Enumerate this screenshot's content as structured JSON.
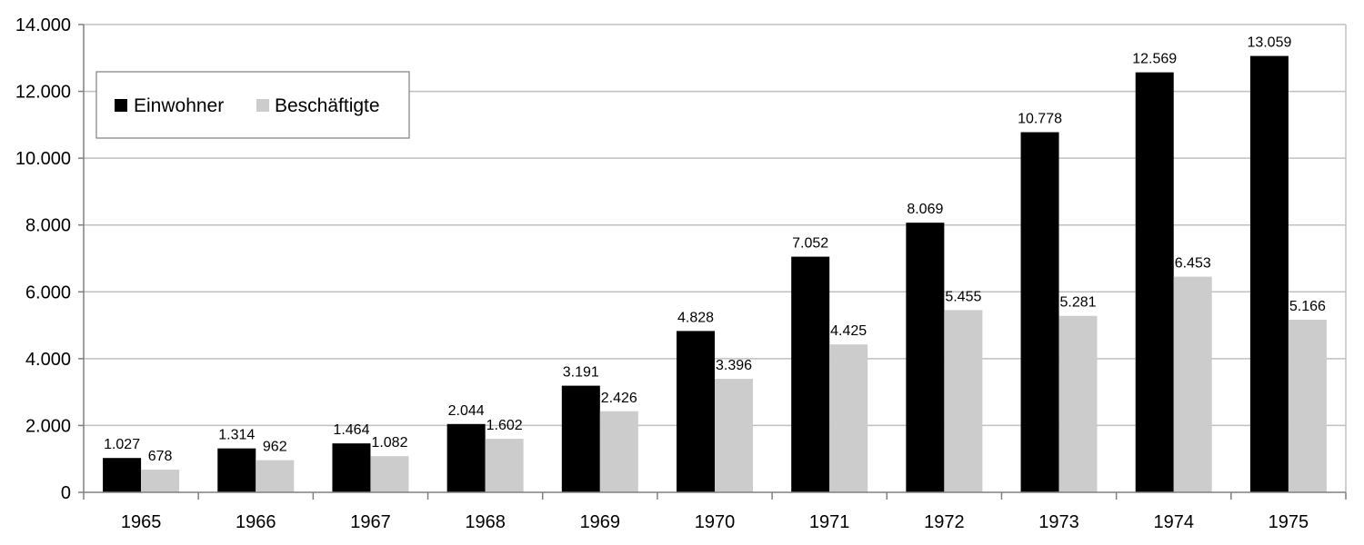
{
  "chart_data": {
    "type": "bar",
    "categories": [
      "1965",
      "1966",
      "1967",
      "1968",
      "1969",
      "1970",
      "1971",
      "1972",
      "1973",
      "1974",
      "1975"
    ],
    "series": [
      {
        "name": "Einwohner",
        "color": "#000000",
        "values": [
          1027,
          1314,
          1464,
          2044,
          3191,
          4828,
          7052,
          8069,
          10778,
          12569,
          13059
        ],
        "labels": [
          "1.027",
          "1.314",
          "1.464",
          "2.044",
          "3.191",
          "4.828",
          "7.052",
          "8.069",
          "10.778",
          "12.569",
          "13.059"
        ]
      },
      {
        "name": "Beschäftigte",
        "color": "#cccccc",
        "values": [
          678,
          962,
          1082,
          1602,
          2426,
          3396,
          4425,
          5455,
          5281,
          6453,
          5166
        ],
        "labels": [
          "678",
          "962",
          "1.082",
          "1.602",
          "2.426",
          "3.396",
          "4.425",
          "5.455",
          "5.281",
          "6.453",
          "5.166"
        ]
      }
    ],
    "ylim": [
      0,
      14000
    ],
    "yticks": [
      0,
      2000,
      4000,
      6000,
      8000,
      10000,
      12000,
      14000
    ],
    "ytick_labels": [
      "0",
      "2.000",
      "4.000",
      "6.000",
      "8.000",
      "10.000",
      "12.000",
      "14.000"
    ],
    "grid": true,
    "legend_position": "top-left",
    "title": "",
    "xlabel": "",
    "ylabel": ""
  }
}
